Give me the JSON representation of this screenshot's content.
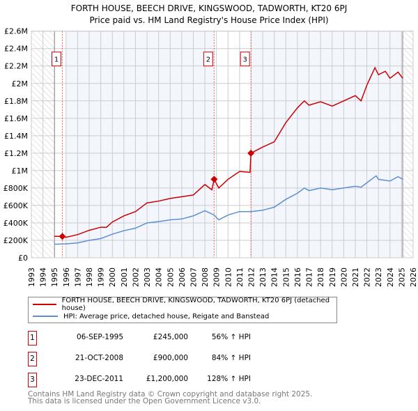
{
  "title": {
    "line1": "FORTH HOUSE, BEECH DRIVE, KINGSWOOD, TADWORTH, KT20 6PJ",
    "line2": "Price paid vs. HM Land Registry's House Price Index (HPI)"
  },
  "chart_data": {
    "type": "line",
    "title": "FORTH HOUSE, BEECH DRIVE, KINGSWOOD, TADWORTH, KT20 6PJ - Price paid vs. HM Land Registry's House Price Index (HPI)",
    "xlim": [
      1993,
      2026
    ],
    "ylim": [
      0,
      2600000
    ],
    "x_ticks": [
      "1993",
      "1994",
      "1995",
      "1996",
      "1997",
      "1998",
      "1999",
      "2000",
      "2001",
      "2002",
      "2003",
      "2004",
      "2005",
      "2006",
      "2007",
      "2008",
      "2009",
      "2010",
      "2011",
      "2012",
      "2013",
      "2014",
      "2015",
      "2016",
      "2017",
      "2018",
      "2019",
      "2020",
      "2021",
      "2022",
      "2023",
      "2024",
      "2025",
      "2026"
    ],
    "y_ticks": [
      {
        "v": 0,
        "l": "£0"
      },
      {
        "v": 200000,
        "l": "£200K"
      },
      {
        "v": 400000,
        "l": "£400K"
      },
      {
        "v": 600000,
        "l": "£600K"
      },
      {
        "v": 800000,
        "l": "£800K"
      },
      {
        "v": 1000000,
        "l": "£1M"
      },
      {
        "v": 1200000,
        "l": "£1.2M"
      },
      {
        "v": 1400000,
        "l": "£1.4M"
      },
      {
        "v": 1600000,
        "l": "£1.6M"
      },
      {
        "v": 1800000,
        "l": "£1.8M"
      },
      {
        "v": 2000000,
        "l": "£2M"
      },
      {
        "v": 2200000,
        "l": "£2.2M"
      },
      {
        "v": 2400000,
        "l": "£2.4M"
      },
      {
        "v": 2600000,
        "l": "£2.6M"
      }
    ],
    "grid": true,
    "data_range": [
      1995,
      2025.1
    ],
    "series": [
      {
        "name": "FORTH HOUSE, BEECH DRIVE, KINGSWOOD, TADWORTH, KT20 6PJ (detached house)",
        "color": "#cc0000",
        "x": [
          1995,
          1995.68,
          1996,
          1997,
          1998,
          1999,
          1999.5,
          2000,
          2001,
          2002,
          2003,
          2004,
          2005,
          2006,
          2007,
          2008,
          2008.6,
          2008.8,
          2009.2,
          2010,
          2011,
          2011.9,
          2011.98,
          2013,
          2014,
          2015,
          2016,
          2016.6,
          2017,
          2018,
          2019,
          2020,
          2021,
          2021.5,
          2022,
          2022.7,
          2023,
          2023.6,
          2024,
          2024.7,
          2025.1
        ],
        "y": [
          245000,
          245000,
          235000,
          265000,
          315000,
          350000,
          350000,
          410000,
          480000,
          530000,
          630000,
          650000,
          680000,
          700000,
          720000,
          840000,
          780000,
          900000,
          800000,
          900000,
          990000,
          980000,
          1200000,
          1270000,
          1330000,
          1550000,
          1720000,
          1800000,
          1750000,
          1790000,
          1740000,
          1800000,
          1860000,
          1800000,
          1980000,
          2180000,
          2100000,
          2140000,
          2060000,
          2130000,
          2060000
        ]
      },
      {
        "name": "HPI: Average price, detached house, Reigate and Banstead",
        "color": "#5b8fd4",
        "x": [
          1995,
          1996,
          1997,
          1998,
          1999,
          2000,
          2001,
          2002,
          2003,
          2004,
          2005,
          2006,
          2007,
          2008,
          2008.8,
          2009.2,
          2010,
          2011,
          2012,
          2013,
          2014,
          2015,
          2016,
          2016.6,
          2017,
          2018,
          2019,
          2020,
          2021,
          2021.5,
          2022,
          2022.8,
          2023,
          2024,
          2024.7,
          2025.1
        ],
        "y": [
          155000,
          160000,
          170000,
          200000,
          220000,
          270000,
          310000,
          340000,
          400000,
          415000,
          435000,
          445000,
          480000,
          540000,
          490000,
          435000,
          490000,
          530000,
          530000,
          545000,
          580000,
          670000,
          740000,
          800000,
          770000,
          800000,
          780000,
          800000,
          820000,
          810000,
          860000,
          940000,
          900000,
          880000,
          930000,
          900000
        ]
      }
    ],
    "sales": [
      {
        "n": "1",
        "x": 1995.68,
        "y": 245000
      },
      {
        "n": "2",
        "x": 2008.8,
        "y": 900000
      },
      {
        "n": "3",
        "x": 2011.98,
        "y": 1200000
      }
    ]
  },
  "legend": {
    "red": "FORTH HOUSE, BEECH DRIVE, KINGSWOOD, TADWORTH, KT20 6PJ (detached house)",
    "blue": "HPI: Average price, detached house, Reigate and Banstead"
  },
  "transactions": [
    {
      "n": "1",
      "date": "06-SEP-1995",
      "price": "£245,000",
      "hpi": "56% ↑ HPI"
    },
    {
      "n": "2",
      "date": "21-OCT-2008",
      "price": "£900,000",
      "hpi": "84% ↑ HPI"
    },
    {
      "n": "3",
      "date": "23-DEC-2011",
      "price": "£1,200,000",
      "hpi": "128% ↑ HPI"
    }
  ],
  "footer": {
    "line1": "Contains HM Land Registry data © Crown copyright and database right 2025.",
    "line2": "This data is licensed under the Open Government Licence v3.0."
  }
}
